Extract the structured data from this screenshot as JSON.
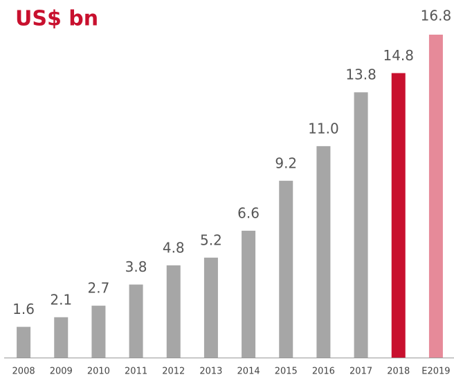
{
  "chart_data": {
    "type": "bar",
    "title": "US$ bn",
    "categories": [
      "2008",
      "2009",
      "2010",
      "2011",
      "2012",
      "2013",
      "2014",
      "2015",
      "2016",
      "2017",
      "2018",
      "E2019"
    ],
    "values": [
      1.6,
      2.1,
      2.7,
      3.8,
      4.8,
      5.2,
      6.6,
      9.2,
      11.0,
      13.8,
      14.8,
      16.8
    ],
    "value_labels": [
      "1.6",
      "2.1",
      "2.7",
      "3.8",
      "4.8",
      "5.2",
      "6.6",
      "9.2",
      "11.0",
      "13.8",
      "14.8",
      "16.8"
    ],
    "colors": [
      "#a6a6a6",
      "#a6a6a6",
      "#a6a6a6",
      "#a6a6a6",
      "#a6a6a6",
      "#a6a6a6",
      "#a6a6a6",
      "#a6a6a6",
      "#a6a6a6",
      "#a6a6a6",
      "#c8102e",
      "#e68a99"
    ],
    "ylim": [
      0,
      16.8
    ]
  }
}
